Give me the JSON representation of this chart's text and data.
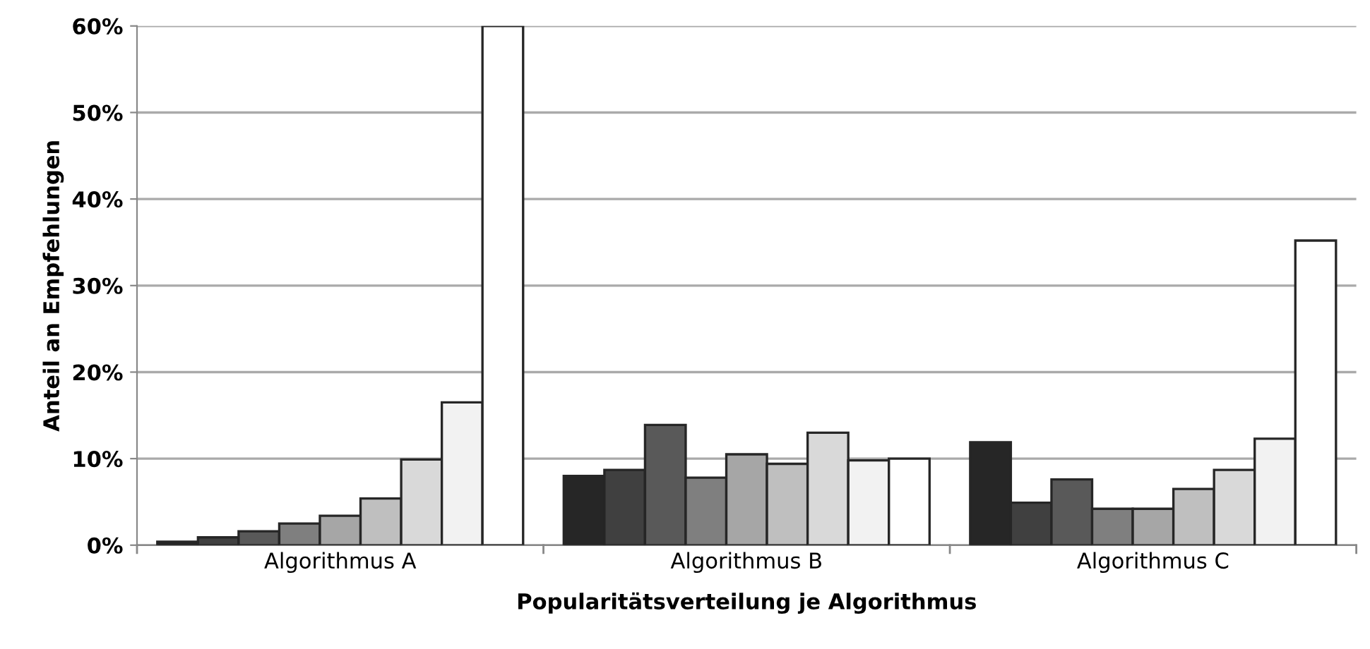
{
  "chart_data": {
    "type": "bar",
    "xlabel": "Popularitätsverteilung je Algorithmus",
    "ylabel": "Anteil an Empfehlungen",
    "categories": [
      "Algorithmus A",
      "Algorithmus B",
      "Algorithmus C"
    ],
    "series": [
      {
        "color": "#262626",
        "values": [
          0.4,
          8.0,
          11.9
        ]
      },
      {
        "color": "#404040",
        "values": [
          0.9,
          8.7,
          4.9
        ]
      },
      {
        "color": "#595959",
        "values": [
          1.6,
          13.9,
          7.6
        ]
      },
      {
        "color": "#7f7f7f",
        "values": [
          2.5,
          7.8,
          4.2
        ]
      },
      {
        "color": "#a6a6a6",
        "values": [
          3.4,
          10.5,
          4.2
        ]
      },
      {
        "color": "#bfbfbf",
        "values": [
          5.4,
          9.4,
          6.5
        ]
      },
      {
        "color": "#d9d9d9",
        "values": [
          9.9,
          13.0,
          8.7
        ]
      },
      {
        "color": "#f2f2f2",
        "values": [
          16.5,
          9.8,
          12.3
        ]
      },
      {
        "color": "#ffffff",
        "values": [
          60,
          10.0,
          35.2
        ]
      }
    ],
    "ylim": [
      0,
      60
    ],
    "yticks": [
      {
        "value": 0,
        "label": "0%"
      },
      {
        "value": 10,
        "label": "10%"
      },
      {
        "value": 20,
        "label": "20%"
      },
      {
        "value": 30,
        "label": "30%"
      },
      {
        "value": 40,
        "label": "40%"
      },
      {
        "value": 50,
        "label": "50%"
      },
      {
        "value": 60,
        "label": "60%"
      }
    ],
    "grid": "y",
    "legend": false
  }
}
